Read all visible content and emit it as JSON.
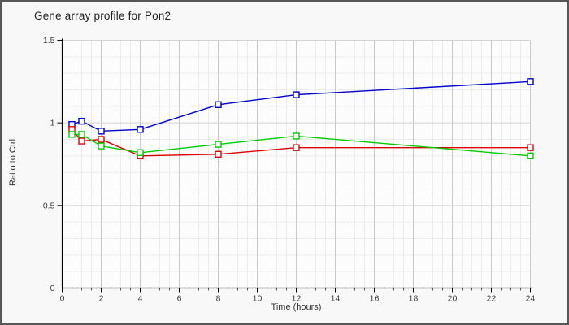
{
  "window": {
    "background": "#f8f8f8",
    "border_color": "#575757",
    "plot_background": "#fcfcfc"
  },
  "chart_data": {
    "type": "line",
    "title": "Gene array profile for Pon2",
    "xlabel": "Time (hours)",
    "ylabel": "Ratio to Ctrl",
    "x": [
      0.5,
      1,
      2,
      4,
      8,
      12,
      24
    ],
    "series": [
      {
        "name": "blue-series",
        "color": "#0000cc",
        "values": [
          0.99,
          1.01,
          0.95,
          0.96,
          1.11,
          1.17,
          1.25
        ]
      },
      {
        "name": "red-series",
        "color": "#dd0000",
        "values": [
          0.96,
          0.89,
          0.9,
          0.8,
          0.81,
          0.85,
          0.85
        ]
      },
      {
        "name": "green-series",
        "color": "#00cc00",
        "values": [
          0.93,
          0.93,
          0.86,
          0.82,
          0.87,
          0.92,
          0.8
        ]
      }
    ],
    "xlim": [
      0,
      24
    ],
    "ylim": [
      0,
      1.5
    ],
    "x_major_ticks": [
      0,
      2,
      4,
      6,
      8,
      10,
      12,
      14,
      16,
      18,
      20,
      22,
      24
    ],
    "x_minor_step": 0.5,
    "y_major_ticks": [
      0,
      0.5,
      1,
      1.5
    ],
    "y_major_tick_labels": [
      "0",
      "0.5",
      "1",
      "1.5"
    ],
    "y_minor_step": 0.1,
    "grid": true,
    "legend_position": "none",
    "marker": "square",
    "grid_minor_color": "#ebebeb",
    "grid_major_color": "#c9c9c9",
    "axis_color": "#000000"
  }
}
